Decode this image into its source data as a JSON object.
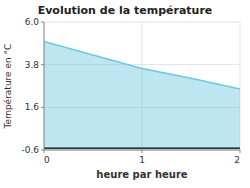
{
  "chart_data": {
    "type": "area",
    "title": "Evolution de la température",
    "x_label": "heure par heure",
    "y_label": "Température en °C",
    "x": [
      0,
      0.5,
      1.0,
      1.5,
      2.0
    ],
    "values": [
      5.0,
      4.3,
      3.6,
      3.1,
      2.55
    ],
    "color": "#6cc8e0",
    "xlim": [
      0,
      2
    ],
    "ylim": [
      -0.6,
      6.0
    ],
    "xticks": [
      0,
      1,
      2
    ],
    "yticks": [
      -0.6,
      1.6,
      3.8,
      {
        "value": 6.0,
        "label": "6.0"
      }
    ],
    "baseline": -0.5,
    "grid": true
  }
}
